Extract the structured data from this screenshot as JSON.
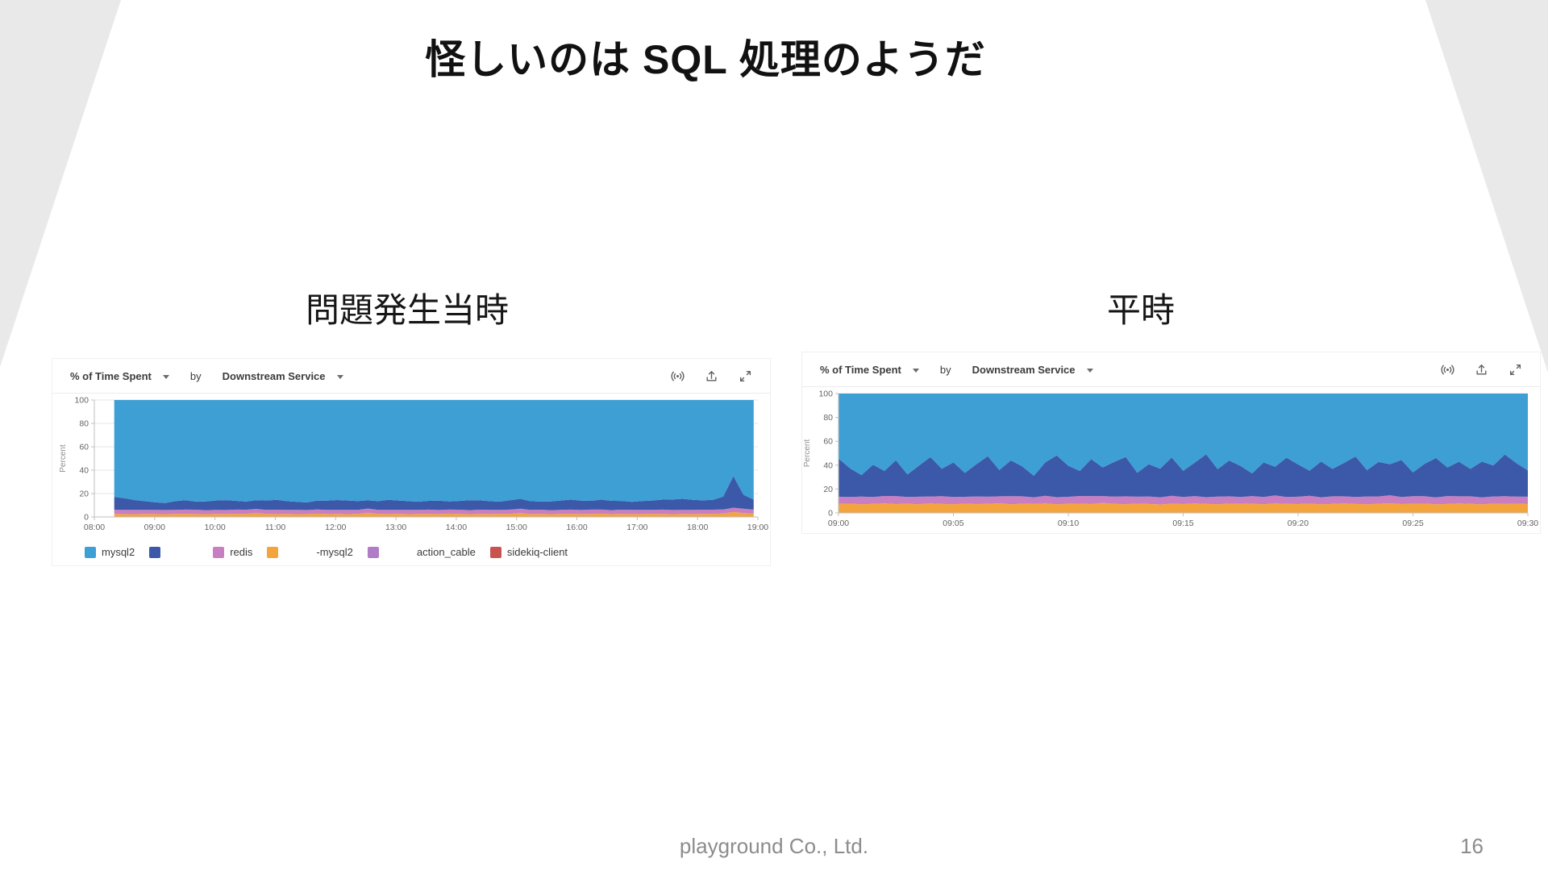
{
  "slide": {
    "title": "怪しいのは SQL 処理のようだ",
    "footer": "playground Co., Ltd.",
    "page_number": "16",
    "accent_wedge_color": "#e9e9e9"
  },
  "sections": {
    "left_label": "問題発生当時",
    "right_label": "平時"
  },
  "chart_header": {
    "metric": "% of Time Spent",
    "by": "by",
    "group": "Downstream Service",
    "icons": [
      "live-data-icon",
      "export-icon",
      "fullscreen-icon"
    ]
  },
  "legend": {
    "items": [
      {
        "color": "#3D9FD3",
        "label": "mysql2",
        "redacted_gap": false
      },
      {
        "color": "#3B59A8",
        "label": "",
        "redacted_gap": true
      },
      {
        "color": "#C77FC2",
        "label": "redis",
        "redacted_gap": false
      },
      {
        "color": "#F4A43C",
        "label": "-mysql2",
        "redacted_gap": true
      },
      {
        "color": "#B07CC6",
        "label": "action_cable",
        "redacted_gap": true
      },
      {
        "color": "#C9534F",
        "label": "sidekiq-client",
        "redacted_gap": false
      }
    ]
  },
  "chart_data": [
    {
      "id": "incident",
      "type": "area",
      "stacked": true,
      "section_label": "問題発生当時",
      "ylabel": "Percent",
      "ylim": [
        0,
        100
      ],
      "y_ticks": [
        0,
        20,
        40,
        60,
        80,
        100
      ],
      "x_domain_hours": [
        8,
        19
      ],
      "x_ticks": [
        {
          "v": 8,
          "label": "08:00"
        },
        {
          "v": 9,
          "label": "09:00"
        },
        {
          "v": 10,
          "label": "10:00"
        },
        {
          "v": 11,
          "label": "11:00"
        },
        {
          "v": 12,
          "label": "12:00"
        },
        {
          "v": 13,
          "label": "13:00"
        },
        {
          "v": 14,
          "label": "14:00"
        },
        {
          "v": 15,
          "label": "15:00"
        },
        {
          "v": 16,
          "label": "16:00"
        },
        {
          "v": 17,
          "label": "17:00"
        },
        {
          "v": 18,
          "label": "18:00"
        },
        {
          "v": 19,
          "label": "19:00"
        }
      ],
      "data_x_range": [
        8.33,
        18.93
      ],
      "series": [
        {
          "name": "-mysql2",
          "color": "#F4A43C",
          "values": [
            2.6,
            2.5,
            2.4,
            2.6,
            2.5,
            2.4,
            2.6,
            2.7,
            2.5,
            2.4,
            2.6,
            2.5,
            2.7,
            2.6,
            3.4,
            2.6,
            2.5,
            2.6,
            2.4,
            2.5,
            2.8,
            2.5,
            2.6,
            2.4,
            2.6,
            3.6,
            2.6,
            2.5,
            2.7,
            2.4,
            2.6,
            2.6,
            2.5,
            2.8,
            2.6,
            2.4,
            2.6,
            2.5,
            2.7,
            2.6,
            3.4,
            2.5,
            2.6,
            2.4,
            2.6,
            2.7,
            2.5,
            2.6,
            2.8,
            2.4,
            2.6,
            2.5,
            2.5,
            2.7,
            2.6,
            2.4,
            2.6,
            2.5,
            2.6,
            2.7,
            3.0,
            4.2,
            3.4,
            2.8
          ]
        },
        {
          "name": "redis",
          "color": "#C77FC2",
          "values": [
            3.6,
            3.5,
            3.6,
            3.4,
            3.6,
            3.5,
            3.4,
            3.6,
            3.7,
            3.4,
            3.5,
            3.4,
            3.6,
            3.6,
            3.4,
            3.5,
            3.7,
            3.4,
            3.6,
            3.4,
            3.6,
            3.5,
            3.4,
            3.7,
            3.5,
            3.6,
            3.4,
            3.6,
            3.4,
            3.6,
            3.5,
            3.7,
            3.4,
            3.5,
            3.6,
            3.4,
            3.6,
            3.5,
            3.4,
            3.7,
            3.6,
            3.5,
            3.6,
            3.4,
            3.5,
            3.6,
            3.4,
            3.7,
            3.5,
            3.4,
            3.6,
            3.5,
            3.6,
            3.4,
            3.7,
            3.5,
            3.4,
            3.6,
            3.6,
            3.5,
            3.4,
            3.7,
            3.6,
            3.5
          ]
        },
        {
          "name": "",
          "color": "#3B59A8",
          "values": [
            11.0,
            10.0,
            8.5,
            7.5,
            6.5,
            6.0,
            7.5,
            8.0,
            7.0,
            7.5,
            8.0,
            8.5,
            7.5,
            7.0,
            7.5,
            8.0,
            8.5,
            7.5,
            7.0,
            6.5,
            7.5,
            8.0,
            8.5,
            8.0,
            7.5,
            7.0,
            7.5,
            8.5,
            8.0,
            7.5,
            7.0,
            7.5,
            8.0,
            7.0,
            7.5,
            8.5,
            8.0,
            7.5,
            7.0,
            8.0,
            8.5,
            7.5,
            7.0,
            7.5,
            8.0,
            8.5,
            8.0,
            7.5,
            8.5,
            8.0,
            7.5,
            7.0,
            7.5,
            8.0,
            8.5,
            9.0,
            9.5,
            8.5,
            8.0,
            8.5,
            11.0,
            27.0,
            12.0,
            8.5
          ]
        },
        {
          "name": "mysql2",
          "color": "#3D9FD3",
          "fill_remainder": true
        }
      ]
    },
    {
      "id": "normal",
      "type": "area",
      "stacked": true,
      "section_label": "平時",
      "ylabel": "Percent",
      "ylim": [
        0,
        100
      ],
      "y_ticks": [
        0,
        20,
        40,
        60,
        80,
        100
      ],
      "x_domain_hours": [
        9,
        9.5
      ],
      "x_ticks": [
        {
          "v": 9,
          "label": "09:00"
        },
        {
          "v": 9.0833,
          "label": "09:05"
        },
        {
          "v": 9.1667,
          "label": "09:10"
        },
        {
          "v": 9.25,
          "label": "09:15"
        },
        {
          "v": 9.3333,
          "label": "09:20"
        },
        {
          "v": 9.4167,
          "label": "09:25"
        },
        {
          "v": 9.5,
          "label": "09:30"
        }
      ],
      "data_x_range": [
        9,
        9.5
      ],
      "series": [
        {
          "name": "-mysql2",
          "color": "#F4A43C",
          "values": [
            7.6,
            7.8,
            7.3,
            7.6,
            8.0,
            7.4,
            7.7,
            7.3,
            7.9,
            7.5,
            7.2,
            7.8,
            7.4,
            7.6,
            8.1,
            7.3,
            7.7,
            7.5,
            7.9,
            7.2,
            7.6,
            7.8,
            7.4,
            8.4,
            7.6,
            7.3,
            7.8,
            7.5,
            7.1,
            7.7,
            7.4,
            7.9,
            7.6,
            7.2,
            7.8,
            7.5,
            7.7,
            7.3,
            8.0,
            7.6,
            7.4,
            7.8,
            7.2,
            7.6,
            7.9,
            7.5,
            7.3,
            7.7,
            8.1,
            7.4,
            7.6,
            7.8,
            7.3,
            7.5,
            7.9,
            7.6,
            7.2,
            7.7,
            7.5,
            7.8,
            7.4
          ]
        },
        {
          "name": "redis",
          "color": "#C77FC2",
          "values": [
            6.0,
            5.6,
            6.4,
            5.8,
            6.2,
            6.7,
            5.6,
            6.3,
            5.9,
            6.5,
            6.1,
            5.7,
            6.4,
            6.0,
            5.8,
            6.7,
            6.2,
            5.6,
            6.5,
            6.0,
            5.9,
            6.4,
            6.7,
            5.7,
            6.1,
            6.6,
            5.8,
            6.3,
            6.0,
            6.7,
            5.9,
            6.2,
            5.6,
            6.5,
            6.1,
            5.8,
            6.4,
            6.0,
            6.7,
            5.7,
            6.2,
            6.6,
            5.9,
            6.3,
            6.0,
            5.8,
            6.5,
            6.1,
            6.7,
            5.9,
            6.4,
            6.2,
            5.7,
            6.6,
            6.0,
            6.3,
            5.8,
            6.1,
            6.5,
            5.9,
            6.2
          ]
        },
        {
          "name": "",
          "color": "#3B59A8",
          "values": [
            32,
            24,
            18,
            27,
            21,
            30,
            19,
            26,
            33,
            23,
            29,
            20,
            27,
            34,
            22,
            30,
            25,
            18,
            28,
            35,
            26,
            21,
            31,
            24,
            29,
            33,
            20,
            27,
            24,
            32,
            22,
            28,
            36,
            23,
            30,
            26,
            19,
            29,
            24,
            33,
            27,
            21,
            30,
            23,
            28,
            34,
            22,
            29,
            26,
            31,
            20,
            27,
            33,
            24,
            29,
            23,
            30,
            26,
            35,
            28,
            22
          ]
        },
        {
          "name": "mysql2",
          "color": "#3D9FD3",
          "fill_remainder": true
        }
      ]
    }
  ]
}
